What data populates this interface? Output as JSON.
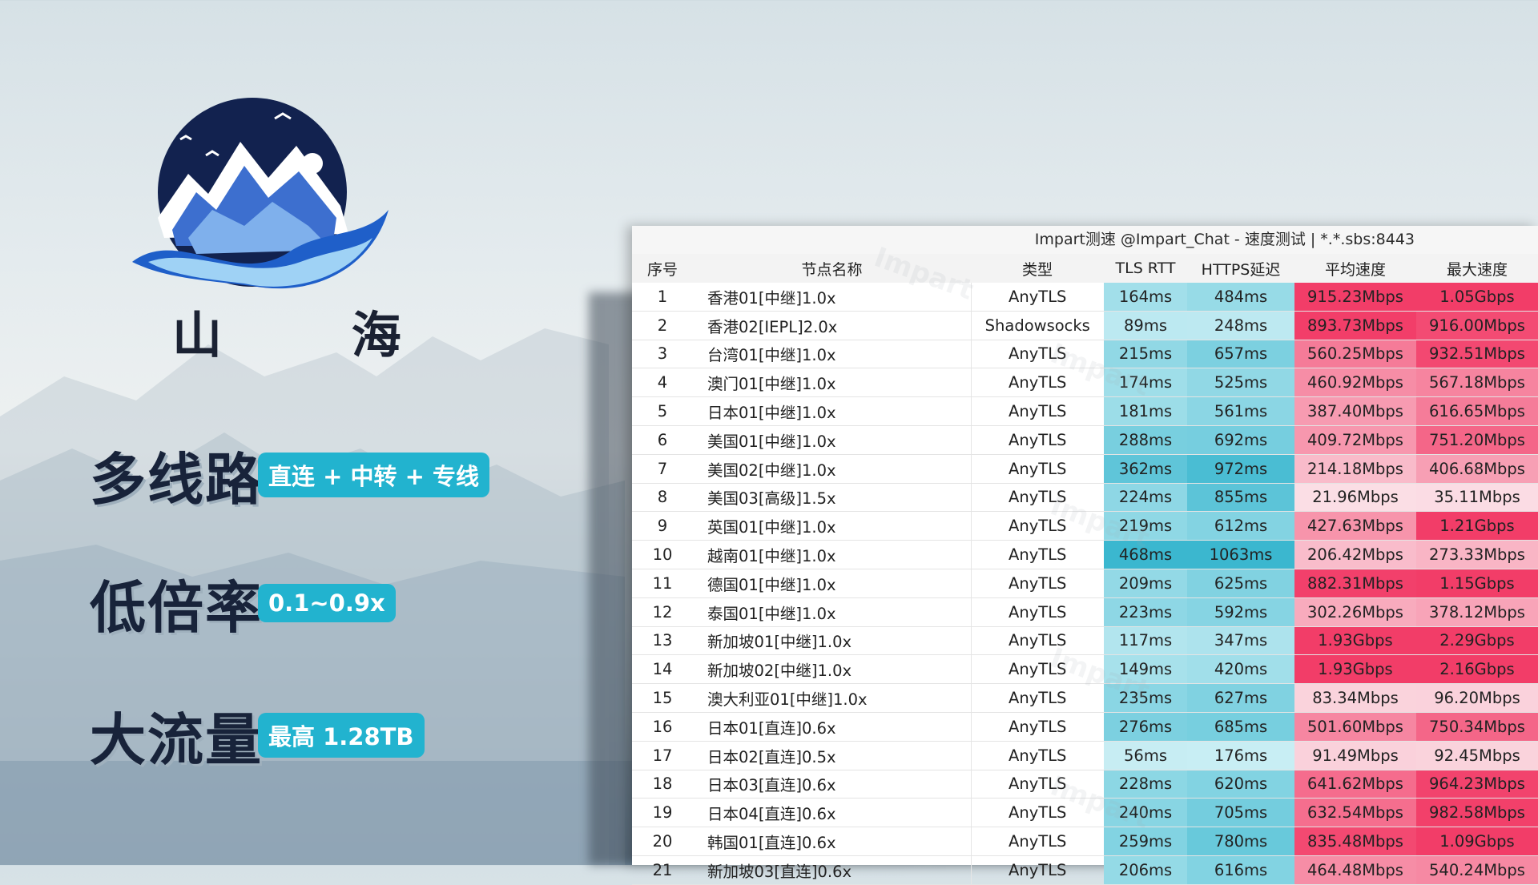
{
  "brand": {
    "name": "山 海"
  },
  "features": [
    {
      "title": "多线路",
      "tag": "直连 + 中转 + 专线"
    },
    {
      "title": "低倍率",
      "tag": "0.1~0.9x"
    },
    {
      "title": "大流量",
      "tag": "最高 1.28TB"
    }
  ],
  "panel": {
    "title": "Impart测速 @Impart_Chat - 速度测试 | *.*.sbs:8443",
    "watermark": "Impart",
    "headers": [
      "序号",
      "节点名称",
      "类型",
      "TLS RTT",
      "HTTPS延迟",
      "平均速度",
      "最大速度"
    ],
    "rows": [
      [
        "1",
        "香港01[中继]1.0x",
        "AnyTLS",
        "164ms",
        "484ms",
        "915.23Mbps",
        "1.05Gbps"
      ],
      [
        "2",
        "香港02[IEPL]2.0x",
        "Shadowsocks",
        "89ms",
        "248ms",
        "893.73Mbps",
        "916.00Mbps"
      ],
      [
        "3",
        "台湾01[中继]1.0x",
        "AnyTLS",
        "215ms",
        "657ms",
        "560.25Mbps",
        "932.51Mbps"
      ],
      [
        "4",
        "澳门01[中继]1.0x",
        "AnyTLS",
        "174ms",
        "525ms",
        "460.92Mbps",
        "567.18Mbps"
      ],
      [
        "5",
        "日本01[中继]1.0x",
        "AnyTLS",
        "181ms",
        "561ms",
        "387.40Mbps",
        "616.65Mbps"
      ],
      [
        "6",
        "美国01[中继]1.0x",
        "AnyTLS",
        "288ms",
        "692ms",
        "409.72Mbps",
        "751.20Mbps"
      ],
      [
        "7",
        "美国02[中继]1.0x",
        "AnyTLS",
        "362ms",
        "972ms",
        "214.18Mbps",
        "406.68Mbps"
      ],
      [
        "8",
        "美国03[高级]1.5x",
        "AnyTLS",
        "224ms",
        "855ms",
        "21.96Mbps",
        "35.11Mbps"
      ],
      [
        "9",
        "英国01[中继]1.0x",
        "AnyTLS",
        "219ms",
        "612ms",
        "427.63Mbps",
        "1.21Gbps"
      ],
      [
        "10",
        "越南01[中继]1.0x",
        "AnyTLS",
        "468ms",
        "1063ms",
        "206.42Mbps",
        "273.33Mbps"
      ],
      [
        "11",
        "德国01[中继]1.0x",
        "AnyTLS",
        "209ms",
        "625ms",
        "882.31Mbps",
        "1.15Gbps"
      ],
      [
        "12",
        "泰国01[中继]1.0x",
        "AnyTLS",
        "223ms",
        "592ms",
        "302.26Mbps",
        "378.12Mbps"
      ],
      [
        "13",
        "新加坡01[中继]1.0x",
        "AnyTLS",
        "117ms",
        "347ms",
        "1.93Gbps",
        "2.29Gbps"
      ],
      [
        "14",
        "新加坡02[中继]1.0x",
        "AnyTLS",
        "149ms",
        "420ms",
        "1.93Gbps",
        "2.16Gbps"
      ],
      [
        "15",
        "澳大利亚01[中继]1.0x",
        "AnyTLS",
        "235ms",
        "627ms",
        "83.34Mbps",
        "96.20Mbps"
      ],
      [
        "16",
        "日本01[直连]0.6x",
        "AnyTLS",
        "276ms",
        "685ms",
        "501.60Mbps",
        "750.34Mbps"
      ],
      [
        "17",
        "日本02[直连]0.5x",
        "AnyTLS",
        "56ms",
        "176ms",
        "91.49Mbps",
        "92.45Mbps"
      ],
      [
        "18",
        "日本03[直连]0.6x",
        "AnyTLS",
        "228ms",
        "620ms",
        "641.62Mbps",
        "964.23Mbps"
      ],
      [
        "19",
        "日本04[直连]0.6x",
        "AnyTLS",
        "240ms",
        "705ms",
        "632.54Mbps",
        "982.58Mbps"
      ],
      [
        "20",
        "韩国01[直连]0.6x",
        "AnyTLS",
        "259ms",
        "780ms",
        "835.48Mbps",
        "1.09Gbps"
      ],
      [
        "21",
        "新加坡03[直连]0.6x",
        "AnyTLS",
        "206ms",
        "616ms",
        "464.48Mbps",
        "540.24Mbps"
      ]
    ]
  }
}
